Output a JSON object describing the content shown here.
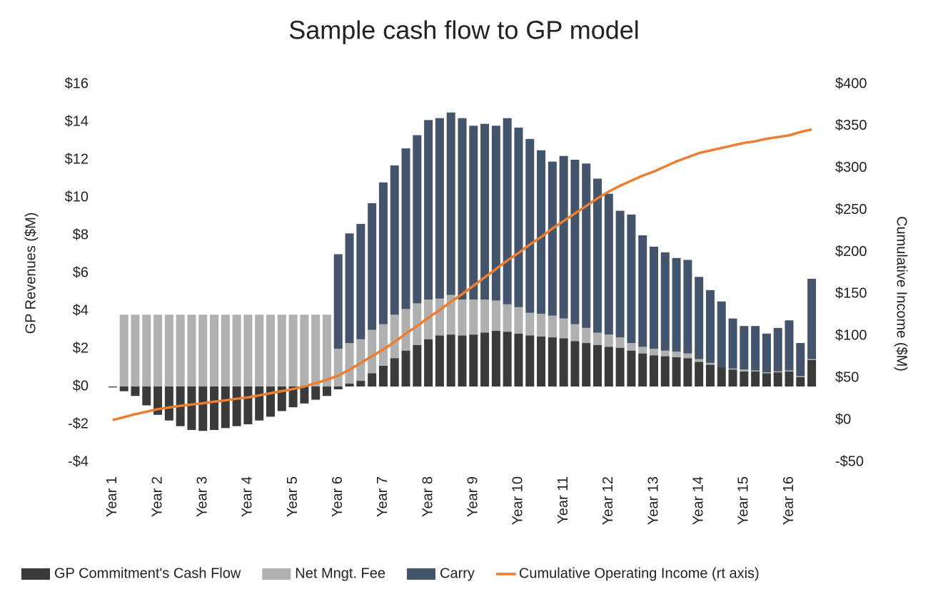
{
  "chart_data": {
    "type": "bar",
    "title": "Sample cash flow to GP model",
    "y_label": "GP Revenues ($M)",
    "y2_label": "Cumulative Income ($M)",
    "categories": [
      "Year 1",
      null,
      null,
      null,
      "Year 2",
      null,
      null,
      null,
      "Year 3",
      null,
      null,
      null,
      "Year 4",
      null,
      null,
      null,
      "Year 5",
      null,
      null,
      null,
      "Year 6",
      null,
      null,
      null,
      "Year 7",
      null,
      null,
      null,
      "Year 8",
      null,
      null,
      null,
      "Year 9",
      null,
      null,
      null,
      "Year 10",
      null,
      null,
      null,
      "Year 11",
      null,
      null,
      null,
      "Year 12",
      null,
      null,
      null,
      "Year 13",
      null,
      null,
      null,
      "Year 14",
      null,
      null,
      null,
      "Year 15",
      null,
      null,
      null,
      "Year 16",
      null,
      null
    ],
    "stacked": true,
    "series": [
      {
        "name": "GP Commitment's Cash Flow",
        "color": "#3a3a3a",
        "values": [
          -0.05,
          -0.25,
          -0.5,
          -1.0,
          -1.5,
          -1.8,
          -2.1,
          -2.3,
          -2.35,
          -2.3,
          -2.2,
          -2.1,
          -2.0,
          -1.8,
          -1.6,
          -1.3,
          -1.1,
          -0.9,
          -0.7,
          -0.5,
          -0.15,
          0.15,
          0.3,
          0.7,
          1.1,
          1.5,
          1.9,
          2.2,
          2.5,
          2.7,
          2.75,
          2.7,
          2.75,
          2.85,
          2.95,
          2.9,
          2.8,
          2.7,
          2.65,
          2.6,
          2.55,
          2.4,
          2.3,
          2.2,
          2.1,
          2.05,
          1.9,
          1.75,
          1.65,
          1.6,
          1.55,
          1.5,
          1.3,
          1.15,
          1.0,
          0.9,
          0.8,
          0.8,
          0.7,
          0.75,
          0.8,
          0.5,
          1.4
        ]
      },
      {
        "name": "Net Mngt. Fee",
        "color": "#b0b0b0",
        "values": [
          0,
          3.8,
          3.8,
          3.8,
          3.8,
          3.8,
          3.8,
          3.8,
          3.8,
          3.8,
          3.8,
          3.8,
          3.8,
          3.8,
          3.8,
          3.8,
          3.8,
          3.8,
          3.8,
          3.8,
          2.0,
          2.15,
          2.2,
          2.3,
          2.2,
          2.3,
          2.2,
          2.2,
          2.1,
          1.95,
          2.1,
          1.9,
          1.85,
          1.75,
          1.6,
          1.45,
          1.4,
          1.2,
          1.2,
          1.15,
          1.05,
          0.9,
          0.8,
          0.65,
          0.65,
          0.55,
          0.4,
          0.35,
          0.35,
          0.3,
          0.3,
          0.25,
          0.15,
          0.1,
          0.0,
          0.05,
          0.1,
          0.05,
          0.05,
          0.05,
          0.05,
          0.05,
          0.05
        ]
      },
      {
        "name": "Carry",
        "color": "#44546a",
        "values": [
          0,
          0,
          0,
          0,
          0,
          0,
          0,
          0,
          0,
          0,
          0,
          0,
          0,
          0,
          0,
          0,
          0,
          0,
          0,
          0,
          5.0,
          5.8,
          6.1,
          6.7,
          7.5,
          7.9,
          8.5,
          8.9,
          9.5,
          9.55,
          9.65,
          9.6,
          9.2,
          9.3,
          9.25,
          9.85,
          9.5,
          9.2,
          8.65,
          8.15,
          8.6,
          8.7,
          8.7,
          8.15,
          7.45,
          6.7,
          6.8,
          5.9,
          5.4,
          5.2,
          4.95,
          4.95,
          4.35,
          3.85,
          3.5,
          2.65,
          2.3,
          2.35,
          2.05,
          2.3,
          2.65,
          1.75,
          4.25
        ]
      },
      {
        "name": "Cumulative Operating Income (rt axis)",
        "color": "#ed7d31",
        "type": "line",
        "axis": "y2",
        "values": [
          0,
          3.5,
          7,
          10,
          13,
          15,
          17,
          18.5,
          20,
          22,
          23.5,
          25.5,
          27,
          29.5,
          32,
          34.5,
          37,
          40,
          44,
          48,
          53,
          60,
          68,
          76,
          84,
          93,
          103,
          112,
          122,
          131,
          141,
          150,
          160,
          170,
          180,
          190,
          199,
          209,
          218,
          228,
          237,
          246,
          255,
          264,
          272,
          279,
          285,
          291,
          296,
          302,
          308,
          313,
          318,
          321,
          324,
          327,
          330,
          332,
          335,
          337,
          339,
          343,
          346
        ]
      }
    ],
    "ylim": [
      -4,
      16
    ],
    "yticks": [
      {
        "value": -4,
        "label": "-$4"
      },
      {
        "value": -2,
        "label": "-$2"
      },
      {
        "value": 0,
        "label": "$0"
      },
      {
        "value": 2,
        "label": "$2"
      },
      {
        "value": 4,
        "label": "$4"
      },
      {
        "value": 6,
        "label": "$6"
      },
      {
        "value": 8,
        "label": "$8"
      },
      {
        "value": 10,
        "label": "$10"
      },
      {
        "value": 12,
        "label": "$12"
      },
      {
        "value": 14,
        "label": "$14"
      },
      {
        "value": 16,
        "label": "$16"
      }
    ],
    "y2lim": [
      -50,
      400
    ],
    "y2ticks": [
      {
        "value": -50,
        "label": "-$50"
      },
      {
        "value": 0,
        "label": "$0"
      },
      {
        "value": 50,
        "label": "$50"
      },
      {
        "value": 100,
        "label": "$100"
      },
      {
        "value": 150,
        "label": "$150"
      },
      {
        "value": 200,
        "label": "$200"
      },
      {
        "value": 250,
        "label": "$250"
      },
      {
        "value": 300,
        "label": "$300"
      },
      {
        "value": 350,
        "label": "$350"
      },
      {
        "value": 400,
        "label": "$400"
      }
    ],
    "grid": false,
    "legend": "bottom"
  }
}
